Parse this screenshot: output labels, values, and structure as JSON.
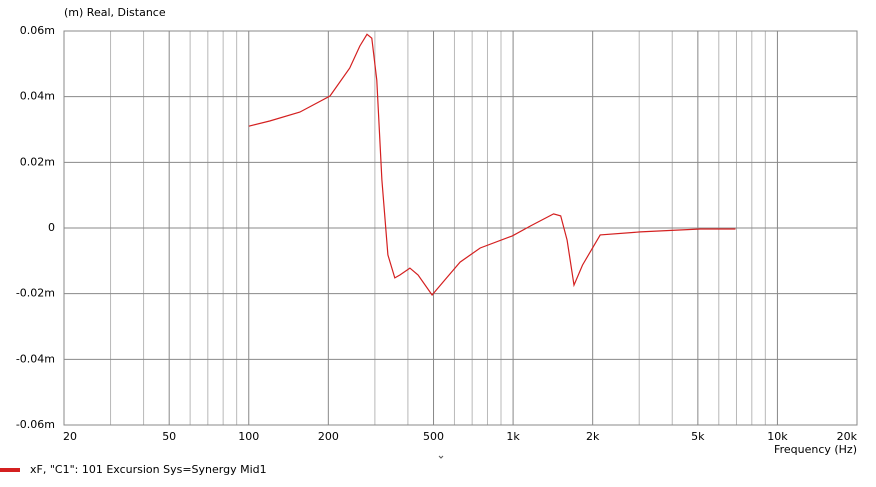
{
  "chart_data": {
    "type": "line",
    "y_label": "(m)  Real, Distance",
    "x_label": "Frequency  (Hz)",
    "log_x": true,
    "grid": true,
    "xlim": [
      20,
      20000
    ],
    "ylim": [
      -0.06,
      0.06
    ],
    "xticks": [
      20,
      50,
      100,
      200,
      500,
      {
        "value": 1000,
        "label": "1k"
      },
      {
        "value": 2000,
        "label": "2k"
      },
      {
        "value": 5000,
        "label": "5k"
      },
      {
        "value": 10000,
        "label": "10k"
      },
      {
        "value": 20000,
        "label": "20k"
      }
    ],
    "x_minor_gridlines": [
      30,
      40,
      60,
      70,
      80,
      90,
      300,
      400,
      600,
      700,
      800,
      900,
      3000,
      4000,
      6000,
      7000,
      8000,
      9000
    ],
    "yticks": [
      {
        "value": 0.06,
        "label": "0.06m"
      },
      {
        "value": 0.04,
        "label": "0.04m"
      },
      {
        "value": 0.02,
        "label": "0.02m"
      },
      0,
      {
        "value": -0.02,
        "label": "-0.02m"
      },
      {
        "value": -0.04,
        "label": "-0.04m"
      },
      {
        "value": -0.06,
        "label": "-0.06m"
      }
    ],
    "x": [
      100,
      120,
      156,
      203,
      241,
      263,
      280,
      292,
      305,
      319,
      336,
      357,
      373,
      407,
      437,
      494,
      552,
      630,
      751,
      993,
      1163,
      1423,
      1514,
      1600,
      1700,
      1830,
      2135,
      3030,
      5110,
      6940
    ],
    "series": [
      {
        "name": "xF, \"C1\": 101 Excursion Sys=Synergy Mid1",
        "color": "#d42020",
        "values": [
          0.031,
          0.0326,
          0.0353,
          0.0402,
          0.0487,
          0.0554,
          0.059,
          0.0578,
          0.045,
          0.0146,
          -0.0082,
          -0.0152,
          -0.0143,
          -0.0122,
          -0.0143,
          -0.0204,
          -0.0158,
          -0.0104,
          -0.0061,
          -0.0024,
          0.0006,
          0.0043,
          0.0037,
          -0.0037,
          -0.0174,
          -0.0113,
          -0.0021,
          -0.0012,
          -0.0003,
          -0.0003
        ]
      }
    ]
  }
}
